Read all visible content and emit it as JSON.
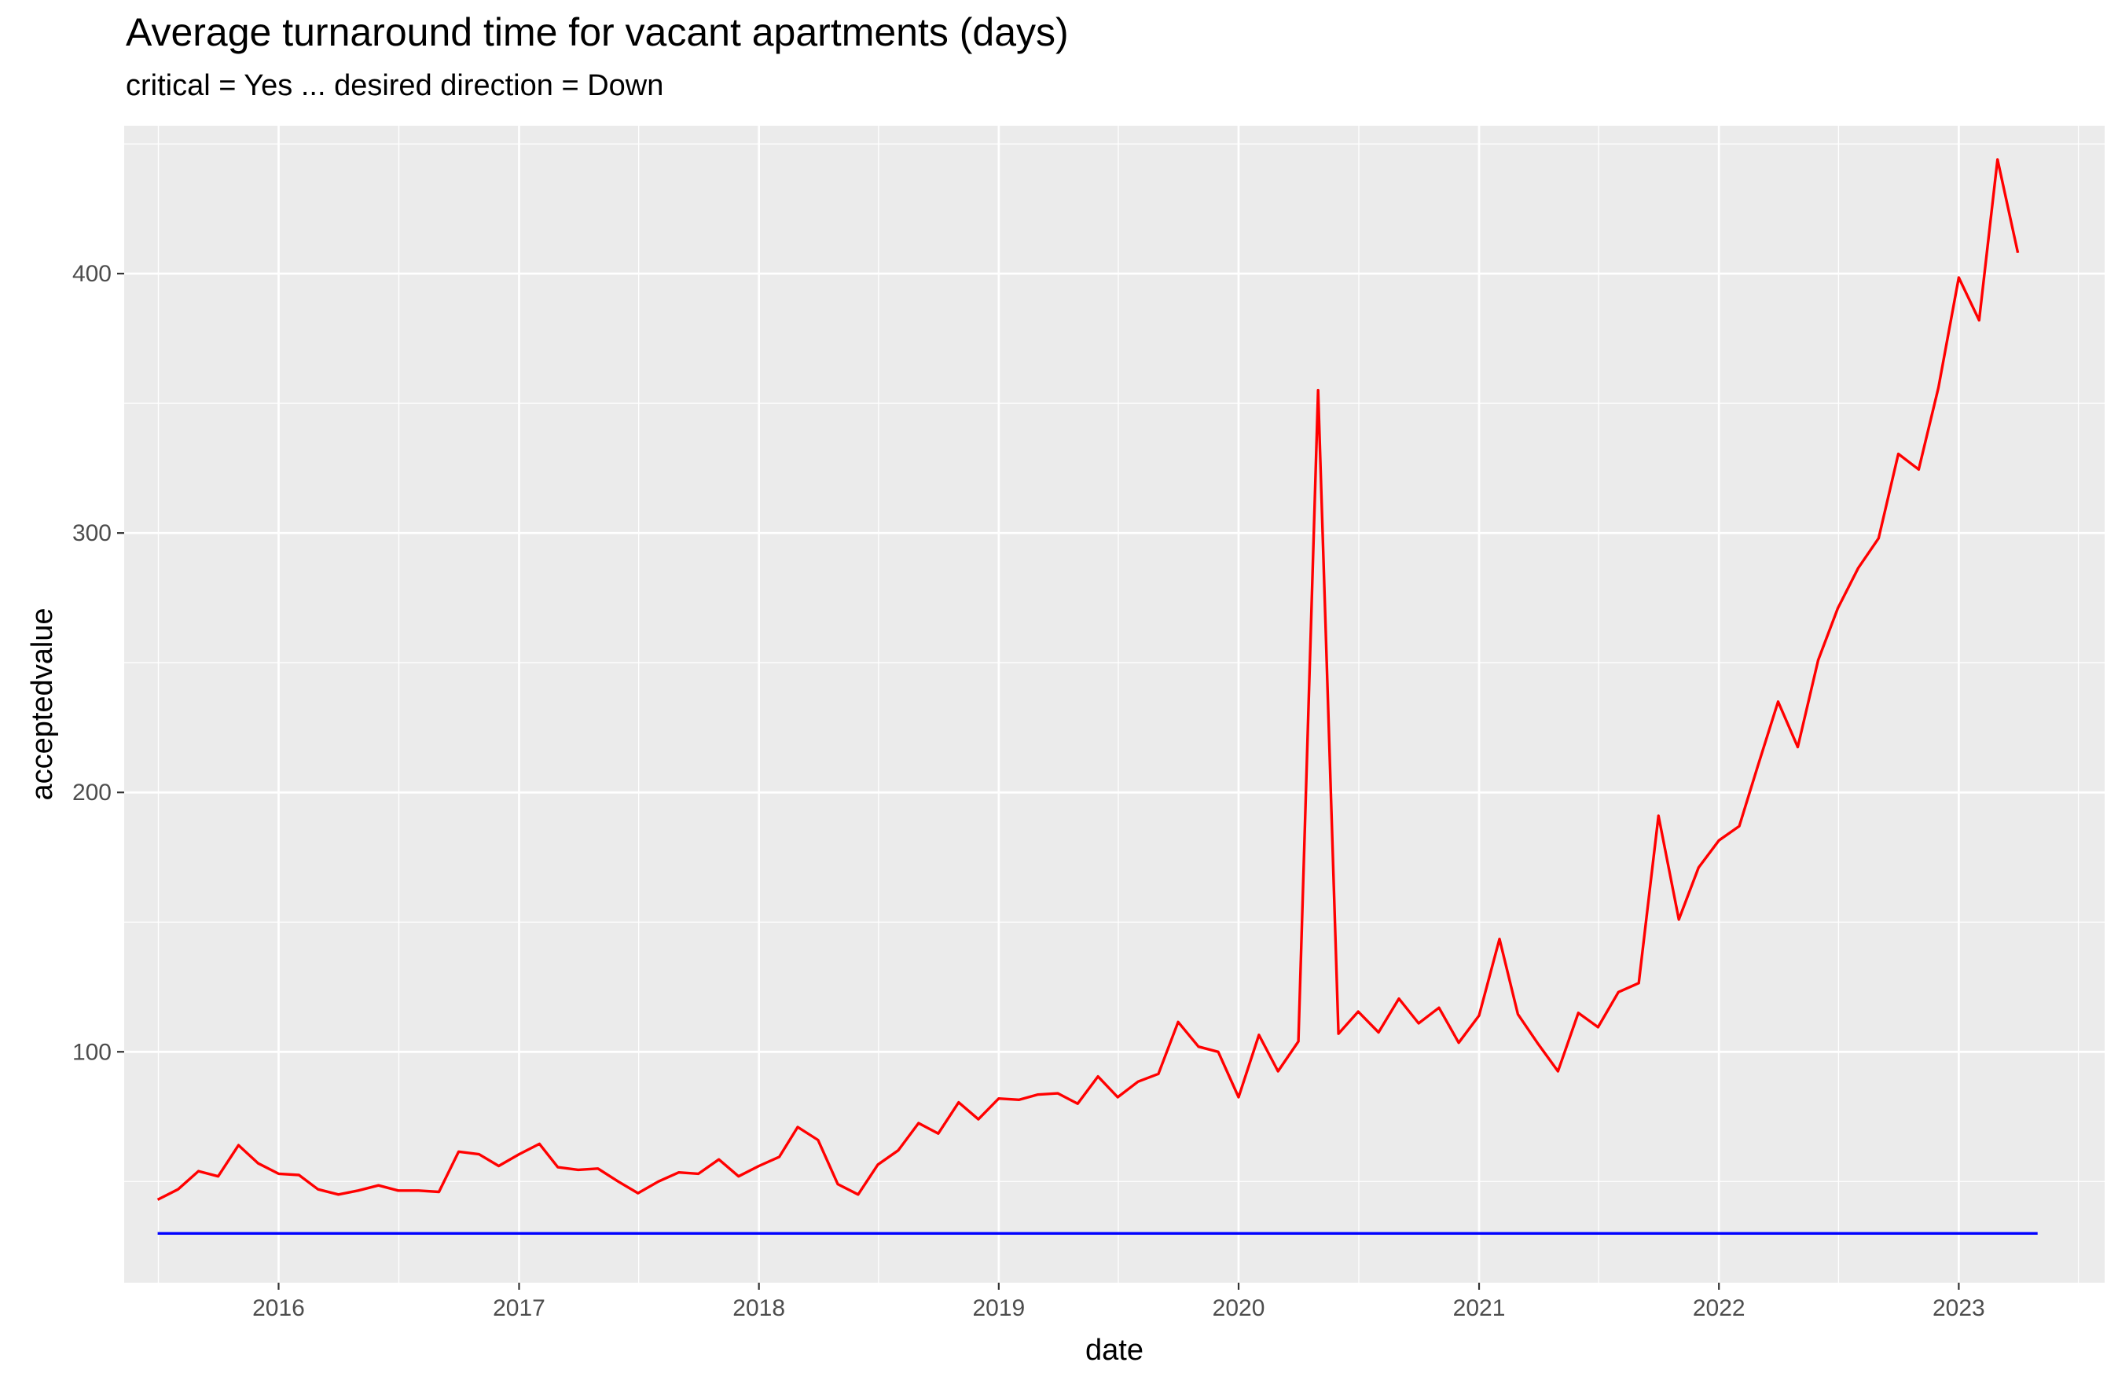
{
  "chart_data": {
    "type": "line",
    "title": "Average turnaround time for vacant apartments (days)",
    "subtitle": "critical = Yes ... desired direction = Down",
    "xlabel": "date",
    "ylabel": "acceptedvalue",
    "x_ticks": [
      "2016",
      "2017",
      "2018",
      "2019",
      "2020",
      "2021",
      "2022",
      "2023"
    ],
    "y_ticks": [
      100,
      200,
      300,
      400
    ],
    "xlim": [
      "2015-05-11",
      "2023-08-11"
    ],
    "ylim": [
      11,
      457
    ],
    "grid": true,
    "legend": "none",
    "series": [
      {
        "color": "#ff0000",
        "x": [
          "2015-07-01",
          "2015-08-01",
          "2015-09-01",
          "2015-10-01",
          "2015-11-01",
          "2015-12-01",
          "2016-01-01",
          "2016-02-01",
          "2016-03-01",
          "2016-04-01",
          "2016-05-01",
          "2016-06-01",
          "2016-07-01",
          "2016-08-01",
          "2016-09-01",
          "2016-10-01",
          "2016-11-01",
          "2016-12-01",
          "2017-01-01",
          "2017-02-01",
          "2017-03-01",
          "2017-04-01",
          "2017-05-01",
          "2017-06-01",
          "2017-07-01",
          "2017-08-01",
          "2017-09-01",
          "2017-10-01",
          "2017-11-01",
          "2017-12-01",
          "2018-01-01",
          "2018-02-01",
          "2018-03-01",
          "2018-04-01",
          "2018-05-01",
          "2018-06-01",
          "2018-07-01",
          "2018-08-01",
          "2018-09-01",
          "2018-10-01",
          "2018-11-01",
          "2018-12-01",
          "2019-01-01",
          "2019-02-01",
          "2019-03-01",
          "2019-04-01",
          "2019-05-01",
          "2019-06-01",
          "2019-07-01",
          "2019-08-01",
          "2019-09-01",
          "2019-10-01",
          "2019-11-01",
          "2019-12-01",
          "2020-01-01",
          "2020-02-01",
          "2020-03-01",
          "2020-04-01",
          "2020-05-01",
          "2020-06-01",
          "2020-07-01",
          "2020-08-01",
          "2020-09-01",
          "2020-10-01",
          "2020-11-01",
          "2020-12-01",
          "2021-01-01",
          "2021-02-01",
          "2021-03-01",
          "2021-04-01",
          "2021-05-01",
          "2021-06-01",
          "2021-07-01",
          "2021-08-01",
          "2021-09-01",
          "2021-10-01",
          "2021-11-01",
          "2021-12-01",
          "2022-01-01",
          "2022-02-01",
          "2022-03-01",
          "2022-04-01",
          "2022-05-01",
          "2022-06-01",
          "2022-07-01",
          "2022-08-01",
          "2022-09-01",
          "2022-10-01",
          "2022-11-01",
          "2022-12-01",
          "2023-01-01",
          "2023-02-01",
          "2023-03-01",
          "2023-04-01"
        ],
        "values": [
          43,
          47,
          54,
          52,
          64,
          57,
          53,
          52.5,
          47,
          45,
          46.5,
          48.5,
          46.5,
          46.5,
          46,
          61.5,
          60.5,
          56,
          60.5,
          64.5,
          55.5,
          54.5,
          55,
          50,
          45.5,
          50,
          53.5,
          53,
          58.5,
          52,
          56,
          59.5,
          71,
          66,
          49,
          45,
          56.5,
          62,
          72.5,
          68.5,
          80.5,
          74,
          82,
          81.5,
          83.5,
          84,
          80,
          90.5,
          82.5,
          88.5,
          91.5,
          111.5,
          102,
          100,
          82.5,
          106.5,
          92.5,
          104,
          355,
          107,
          115.5,
          107.5,
          120.5,
          111,
          117,
          103.5,
          114,
          143.5,
          114.5,
          103,
          92.5,
          115,
          109.5,
          123,
          126.5,
          191,
          151,
          171,
          181.5,
          187,
          210,
          235,
          217.5,
          251,
          271,
          286.5,
          298,
          330.5,
          324.5,
          356,
          398.5,
          382,
          444,
          408
        ]
      },
      {
        "color": "#0000ff",
        "x": [
          "2015-07-01",
          "2023-05-01"
        ],
        "values": [
          30,
          30
        ]
      }
    ]
  }
}
